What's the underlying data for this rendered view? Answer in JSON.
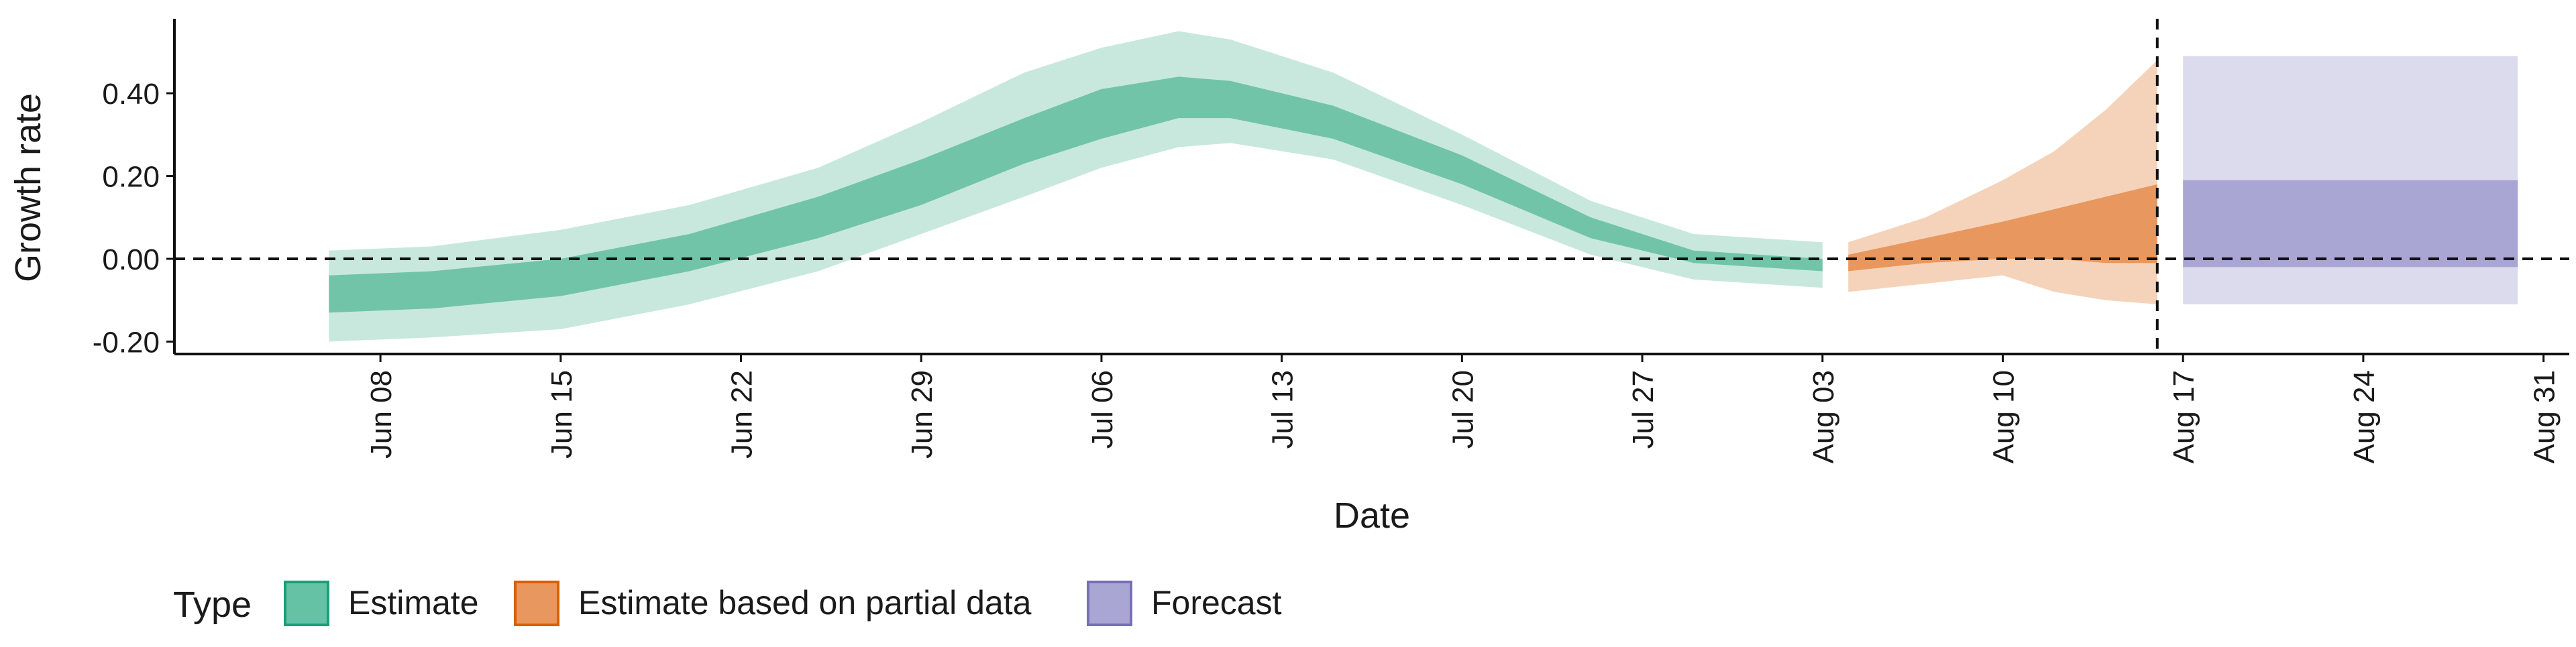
{
  "chart_data": {
    "type": "area",
    "title": "",
    "xlabel": "Date",
    "ylabel": "Growth rate",
    "x_tick_labels": [
      "Jun 08",
      "Jun 15",
      "Jun 22",
      "Jun 29",
      "Jul 06",
      "Jul 13",
      "Jul 20",
      "Jul 27",
      "Aug 03",
      "Aug 10",
      "Aug 17",
      "Aug 24",
      "Aug 31"
    ],
    "x_ticks": [
      "2020-06-08",
      "2020-06-15",
      "2020-06-22",
      "2020-06-29",
      "2020-07-06",
      "2020-07-13",
      "2020-07-20",
      "2020-07-27",
      "2020-08-03",
      "2020-08-10",
      "2020-08-17",
      "2020-08-24",
      "2020-08-31"
    ],
    "xlim": [
      "2020-05-31",
      "2020-09-01"
    ],
    "y_ticks": [
      -0.2,
      0.0,
      0.2,
      0.4
    ],
    "y_tick_labels": [
      "-0.20",
      "0.00",
      "0.20",
      "0.40"
    ],
    "ylim": [
      -0.23,
      0.58
    ],
    "grid": false,
    "reference_lines": {
      "horizontal_y": 0,
      "vertical_x": "2020-08-16"
    },
    "legend": {
      "title": "Type",
      "position": "bottom-left",
      "items": [
        {
          "label": "Estimate",
          "fill": "#66c2a5",
          "border": "#1b9e77"
        },
        {
          "label": "Estimate based on partial data",
          "fill": "#e8985e",
          "border": "#d95f02"
        },
        {
          "label": "Forecast",
          "fill": "#a9a6d3",
          "border": "#7570b3"
        }
      ]
    },
    "series": [
      {
        "name": "Estimate",
        "outer_color": "#c8e8de",
        "inner_color": "#72c4a8",
        "points": [
          {
            "x": "2020-06-06",
            "outer": [
              -0.2,
              0.02
            ],
            "inner": [
              -0.13,
              -0.04
            ]
          },
          {
            "x": "2020-06-10",
            "outer": [
              -0.19,
              0.03
            ],
            "inner": [
              -0.12,
              -0.03
            ]
          },
          {
            "x": "2020-06-15",
            "outer": [
              -0.17,
              0.07
            ],
            "inner": [
              -0.09,
              0.0
            ]
          },
          {
            "x": "2020-06-20",
            "outer": [
              -0.11,
              0.13
            ],
            "inner": [
              -0.03,
              0.06
            ]
          },
          {
            "x": "2020-06-25",
            "outer": [
              -0.03,
              0.22
            ],
            "inner": [
              0.05,
              0.15
            ]
          },
          {
            "x": "2020-06-29",
            "outer": [
              0.06,
              0.33
            ],
            "inner": [
              0.13,
              0.24
            ]
          },
          {
            "x": "2020-07-03",
            "outer": [
              0.15,
              0.45
            ],
            "inner": [
              0.23,
              0.34
            ]
          },
          {
            "x": "2020-07-06",
            "outer": [
              0.22,
              0.51
            ],
            "inner": [
              0.29,
              0.41
            ]
          },
          {
            "x": "2020-07-09",
            "outer": [
              0.27,
              0.55
            ],
            "inner": [
              0.34,
              0.44
            ]
          },
          {
            "x": "2020-07-11",
            "outer": [
              0.28,
              0.53
            ],
            "inner": [
              0.34,
              0.43
            ]
          },
          {
            "x": "2020-07-15",
            "outer": [
              0.24,
              0.45
            ],
            "inner": [
              0.29,
              0.37
            ]
          },
          {
            "x": "2020-07-20",
            "outer": [
              0.13,
              0.3
            ],
            "inner": [
              0.18,
              0.25
            ]
          },
          {
            "x": "2020-07-25",
            "outer": [
              0.01,
              0.14
            ],
            "inner": [
              0.05,
              0.1
            ]
          },
          {
            "x": "2020-07-29",
            "outer": [
              -0.05,
              0.06
            ],
            "inner": [
              -0.01,
              0.02
            ]
          },
          {
            "x": "2020-08-03",
            "outer": [
              -0.07,
              0.04
            ],
            "inner": [
              -0.03,
              0.0
            ]
          }
        ]
      },
      {
        "name": "Estimate based on partial data",
        "outer_color": "#f5d3bb",
        "inner_color": "#e8985e",
        "points": [
          {
            "x": "2020-08-04",
            "outer": [
              -0.08,
              0.04
            ],
            "inner": [
              -0.03,
              0.01
            ]
          },
          {
            "x": "2020-08-07",
            "outer": [
              -0.06,
              0.1
            ],
            "inner": [
              -0.01,
              0.05
            ]
          },
          {
            "x": "2020-08-10",
            "outer": [
              -0.04,
              0.19
            ],
            "inner": [
              0.0,
              0.09
            ]
          },
          {
            "x": "2020-08-12",
            "outer": [
              -0.08,
              0.26
            ],
            "inner": [
              0.0,
              0.12
            ]
          },
          {
            "x": "2020-08-14",
            "outer": [
              -0.1,
              0.36
            ],
            "inner": [
              -0.01,
              0.15
            ]
          },
          {
            "x": "2020-08-16",
            "outer": [
              -0.11,
              0.48
            ],
            "inner": [
              -0.01,
              0.18
            ]
          }
        ]
      },
      {
        "name": "Forecast",
        "outer_color": "#dcdbee",
        "inner_color": "#a9a6d3",
        "points": [
          {
            "x": "2020-08-17",
            "outer": [
              -0.11,
              0.49
            ],
            "inner": [
              -0.02,
              0.19
            ]
          },
          {
            "x": "2020-08-30",
            "outer": [
              -0.11,
              0.49
            ],
            "inner": [
              -0.02,
              0.19
            ]
          }
        ]
      }
    ]
  }
}
